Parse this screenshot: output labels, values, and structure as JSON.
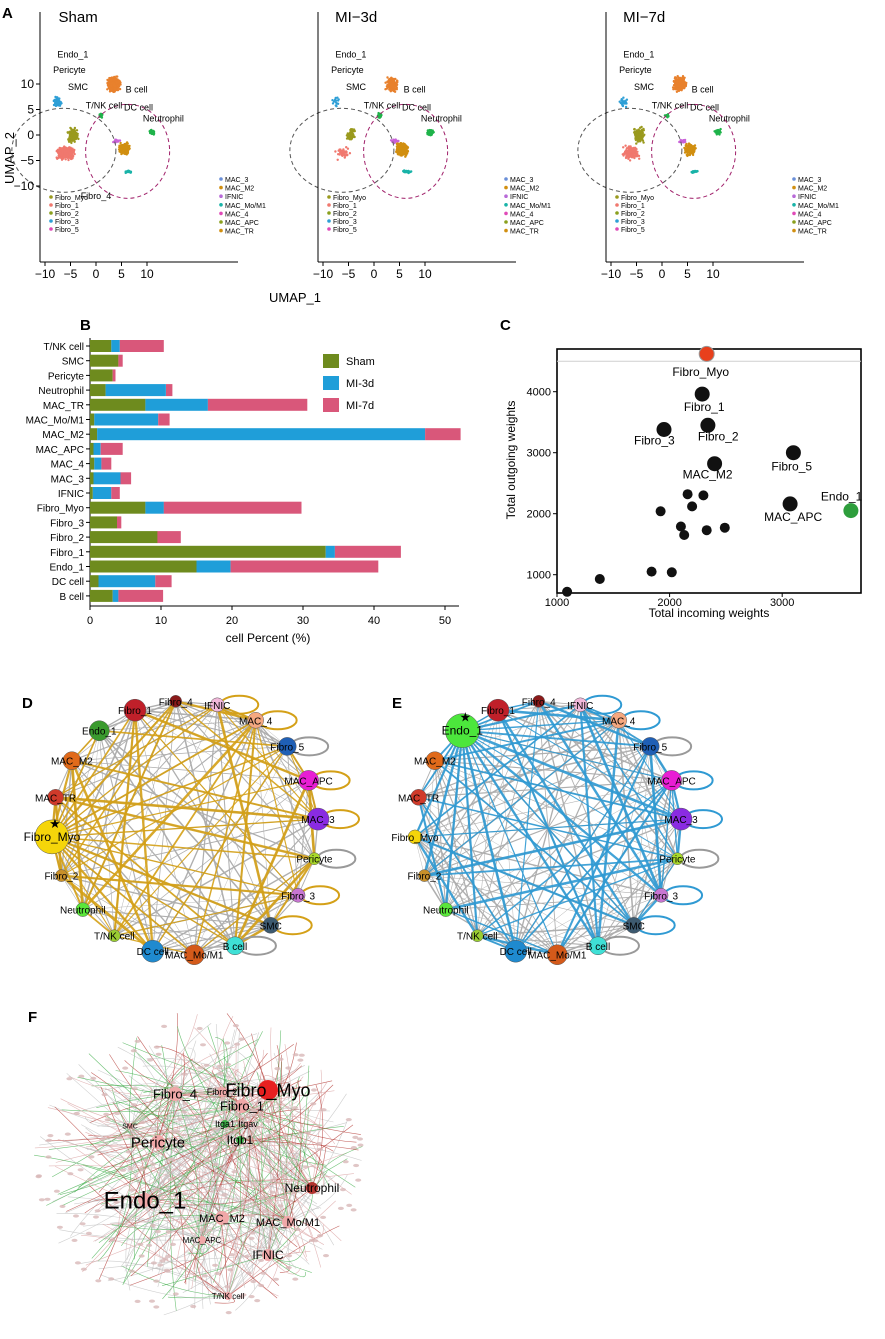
{
  "panel_letters": [
    "A",
    "B",
    "C",
    "D",
    "E",
    "F"
  ],
  "colors": {
    "sham": "#6E8B1E",
    "mi3d": "#1F9ED9",
    "mi7d": "#D9577A",
    "fibro_dots": "#F0786E",
    "fibro_alt": "#9A9A1E",
    "endo": "#E8812D",
    "neutrophil": "#1FB34A",
    "mac": "#D18F10",
    "pericyte": "#2E9FD6",
    "c_red": "#E8401C",
    "c_green": "#2E9E3C",
    "c_black": "#111111",
    "edge_gold": "#D4A017",
    "edge_blue": "#2F9AD3",
    "edge_gray": "#AFAFAF",
    "net_green": "#3FAE4A",
    "net_red": "#B2342F"
  },
  "panel_a": {
    "x_axis_label": "UMAP_1",
    "y_axis_label": "UMAP_2",
    "x_ticks": [
      "−10",
      "−5",
      "0",
      "5",
      "10"
    ],
    "y_ticks": [
      "10",
      "5",
      "0",
      "−5",
      "−10"
    ],
    "subplots": [
      {
        "title": "Sham",
        "labels": [
          "Pericyte",
          "SMC",
          "Endo_1",
          "B cell",
          "T/NK cell",
          "DC cell",
          "Neutrophil",
          "Fibro_4"
        ]
      },
      {
        "title": "MI−3d",
        "labels": [
          "Pericyte",
          "SMC",
          "Endo_1",
          "B cell",
          "T/NK cell",
          "DC cell",
          "Neutrophil"
        ]
      },
      {
        "title": "MI−7d",
        "labels": [
          "Pericyte",
          "SMC",
          "Endo_1",
          "B cell",
          "T/NK cell",
          "DC cell",
          "Neutrophil"
        ]
      }
    ],
    "fibro_legend": [
      "Fibro_Myo",
      "Fibro_1",
      "Fibro_2",
      "Fibro_3",
      "Fibro_5"
    ],
    "mac_legend": [
      "MAC_3",
      "MAC_M2",
      "IFNIC",
      "MAC_Mo/M1",
      "MAC_4",
      "MAC_APC",
      "MAC_TR"
    ]
  },
  "chart_data": [
    {
      "type": "bar",
      "orientation": "horizontal-stacked",
      "categories": [
        "T/NK cell",
        "SMC",
        "Pericyte",
        "Neutrophil",
        "MAC_TR",
        "MAC_Mo/M1",
        "MAC_M2",
        "MAC_APC",
        "MAC_4",
        "MAC_3",
        "IFNIC",
        "Fibro_Myo",
        "Fibro_3",
        "Fibro_2",
        "Fibro_1",
        "Endo_1",
        "DC cell",
        "B cell"
      ],
      "series": [
        {
          "name": "Sham",
          "values": [
            3.0,
            4.0,
            3.2,
            2.2,
            7.8,
            0.6,
            1.0,
            0.5,
            0.6,
            0.5,
            0.4,
            7.8,
            3.8,
            9.5,
            33.2,
            15.0,
            1.2,
            3.2
          ]
        },
        {
          "name": "MI-3d",
          "values": [
            1.2,
            0,
            0,
            8.5,
            8.8,
            9.0,
            46.2,
            1.0,
            1.0,
            3.8,
            2.6,
            2.6,
            0,
            0,
            1.3,
            4.8,
            8.0,
            0.8
          ]
        },
        {
          "name": "MI-7d",
          "values": [
            6.2,
            0.6,
            0.4,
            0.9,
            14.0,
            1.6,
            5.0,
            3.1,
            1.4,
            1.5,
            1.2,
            19.4,
            0.6,
            3.3,
            9.3,
            20.8,
            2.3,
            6.3
          ]
        }
      ],
      "title": "",
      "xlabel": "cell Percent (%)",
      "x_ticks": [
        0,
        10,
        20,
        30,
        40,
        50
      ],
      "xlim": [
        0,
        52
      ],
      "legend": "top-right"
    },
    {
      "type": "scatter",
      "title": "",
      "xlabel": "Total incoming weights",
      "ylabel": "Total outgoing weights",
      "xlim": [
        1000,
        3700
      ],
      "ylim": [
        700,
        4700
      ],
      "x_ticks": [
        1000,
        2000,
        3000
      ],
      "y_ticks": [
        1000,
        2000,
        3000,
        4000
      ],
      "threshold_line": 4500,
      "points": [
        {
          "label": "Fibro_Myo",
          "x": 2330,
          "y": 4620,
          "color": "red",
          "size": "large"
        },
        {
          "label": "Fibro_1",
          "x": 2290,
          "y": 3960,
          "color": "black",
          "size": "large"
        },
        {
          "label": "Fibro_3",
          "x": 1950,
          "y": 3380,
          "color": "black",
          "size": "large"
        },
        {
          "label": "Fibro_2",
          "x": 2340,
          "y": 3450,
          "color": "black",
          "size": "large"
        },
        {
          "label": "MAC_M2",
          "x": 2400,
          "y": 2820,
          "color": "black",
          "size": "large"
        },
        {
          "label": "Fibro_5",
          "x": 3100,
          "y": 3000,
          "color": "black",
          "size": "large"
        },
        {
          "label": "Endo_1",
          "x": 3610,
          "y": 2050,
          "color": "green",
          "size": "large"
        },
        {
          "label": "MAC_APC",
          "x": 3070,
          "y": 2160,
          "color": "black",
          "size": "large"
        },
        {
          "label": "",
          "x": 1920,
          "y": 2040,
          "color": "black",
          "size": "small"
        },
        {
          "label": "",
          "x": 2160,
          "y": 2320,
          "color": "black",
          "size": "small"
        },
        {
          "label": "",
          "x": 2300,
          "y": 2300,
          "color": "black",
          "size": "small"
        },
        {
          "label": "",
          "x": 2200,
          "y": 2120,
          "color": "black",
          "size": "small"
        },
        {
          "label": "",
          "x": 2100,
          "y": 1790,
          "color": "black",
          "size": "small"
        },
        {
          "label": "",
          "x": 2130,
          "y": 1650,
          "color": "black",
          "size": "small"
        },
        {
          "label": "",
          "x": 2330,
          "y": 1730,
          "color": "black",
          "size": "small"
        },
        {
          "label": "",
          "x": 2490,
          "y": 1770,
          "color": "black",
          "size": "small"
        },
        {
          "label": "",
          "x": 1840,
          "y": 1050,
          "color": "black",
          "size": "small"
        },
        {
          "label": "",
          "x": 2020,
          "y": 1040,
          "color": "black",
          "size": "small"
        },
        {
          "label": "",
          "x": 1380,
          "y": 930,
          "color": "black",
          "size": "small"
        },
        {
          "label": "",
          "x": 1090,
          "y": 720,
          "color": "black",
          "size": "small"
        }
      ]
    }
  ],
  "panel_d": {
    "nodes": [
      {
        "label": "Fibro_2",
        "color": "#C8902A"
      },
      {
        "label": "Fibro_Myo",
        "color": "#F5D50A"
      },
      {
        "label": "MAC_TR",
        "color": "#D03A2A"
      },
      {
        "label": "MAC_M2",
        "color": "#E06A1A"
      },
      {
        "label": "Endo_1",
        "color": "#3A9A2E"
      },
      {
        "label": "Fibro_1",
        "color": "#C0202A"
      },
      {
        "label": "Fibro_4",
        "color": "#8B1A1A"
      },
      {
        "label": "IFNIC",
        "color": "#F2B8DA"
      },
      {
        "label": "MAC_4",
        "color": "#F5A880"
      },
      {
        "label": "Fibro_5",
        "color": "#1F5FB5"
      },
      {
        "label": "MAC_APC",
        "color": "#E81ED4"
      },
      {
        "label": "MAC_3",
        "color": "#8A2BE2"
      },
      {
        "label": "Pericyte",
        "color": "#A8D82A"
      },
      {
        "label": "Fibro_3",
        "color": "#C876D2"
      },
      {
        "label": "SMC",
        "color": "#3D5A70"
      },
      {
        "label": "B cell",
        "color": "#3FE0D6"
      },
      {
        "label": "MAC_Mo/M1",
        "color": "#D45A1A"
      },
      {
        "label": "DC cell",
        "color": "#1F8ACF"
      },
      {
        "label": "T/NK cell",
        "color": "#9ACD32"
      },
      {
        "label": "Neutrophil",
        "color": "#5AE63A"
      }
    ],
    "hub": "Fibro_Myo"
  },
  "panel_e": {
    "nodes": [
      {
        "label": "Fibro_2",
        "color": "#C8902A"
      },
      {
        "label": "Fibro_Myo",
        "color": "#F5D50A"
      },
      {
        "label": "MAC_TR",
        "color": "#D03A2A"
      },
      {
        "label": "MAC_M2",
        "color": "#E06A1A"
      },
      {
        "label": "Endo_1",
        "color": "#4CE63C"
      },
      {
        "label": "Fibro_1",
        "color": "#C0202A"
      },
      {
        "label": "Fibro_4",
        "color": "#8B1A1A"
      },
      {
        "label": "IFNIC",
        "color": "#F2B8DA"
      },
      {
        "label": "MAC_4",
        "color": "#F5A880"
      },
      {
        "label": "Fibro_5",
        "color": "#1F5FB5"
      },
      {
        "label": "MAC_APC",
        "color": "#E81ED4"
      },
      {
        "label": "MAC_3",
        "color": "#8A2BE2"
      },
      {
        "label": "Pericyte",
        "color": "#A8D82A"
      },
      {
        "label": "Fibro_3",
        "color": "#C876D2"
      },
      {
        "label": "SMC",
        "color": "#3D5A70"
      },
      {
        "label": "B cell",
        "color": "#3FE0D6"
      },
      {
        "label": "MAC_Mo/M1",
        "color": "#D45A1A"
      },
      {
        "label": "DC cell",
        "color": "#1F8ACF"
      },
      {
        "label": "T/NK cell",
        "color": "#9ACD32"
      },
      {
        "label": "Neutrophil",
        "color": "#5AE63A"
      }
    ],
    "hub": "Endo_1"
  },
  "panel_f": {
    "major_labels": [
      "Fibro_Myo",
      "Fibro_4",
      "Fibro_2",
      "Fibro_1",
      "Pericyte",
      "Itga1",
      "Itgav",
      "Itgb1",
      "Endo_1",
      "Neutrophil",
      "MAC_M2",
      "MAC_Mo/M1",
      "MAC_APC",
      "IFNIC",
      "T/NK cell",
      "SMC"
    ]
  }
}
